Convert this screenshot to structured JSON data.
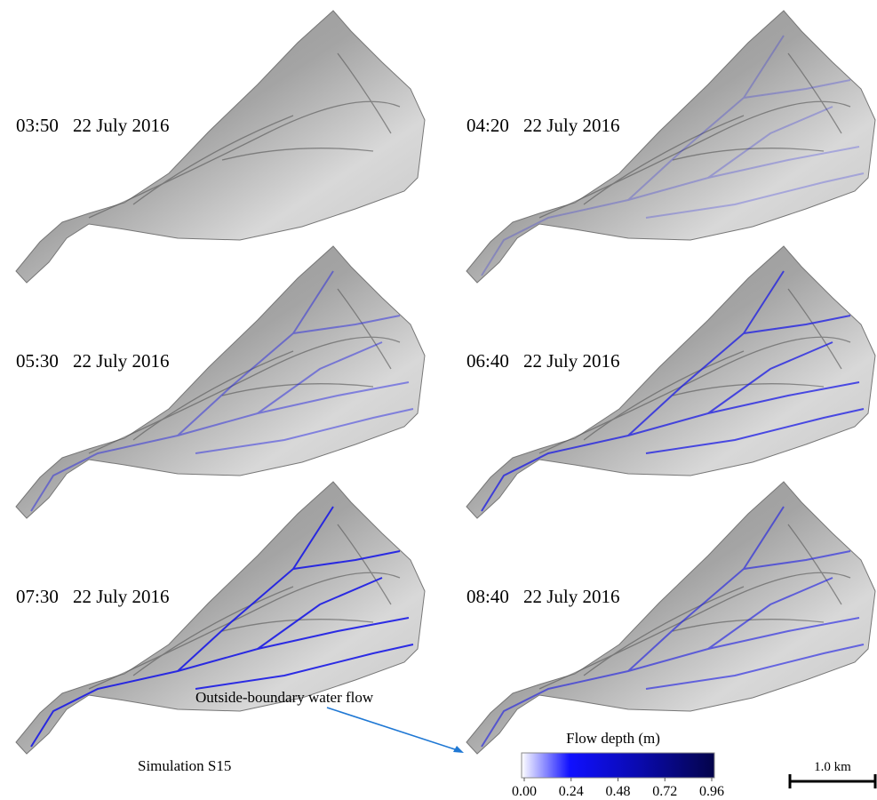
{
  "panels": [
    {
      "time": "03:50",
      "date": "22 July 2016"
    },
    {
      "time": "04:20",
      "date": "22 July 2016"
    },
    {
      "time": "05:30",
      "date": "22 July 2016"
    },
    {
      "time": "06:40",
      "date": "22 July 2016"
    },
    {
      "time": "07:30",
      "date": "22 July 2016"
    },
    {
      "time": "08:40",
      "date": "22 July 2016"
    }
  ],
  "annotation": "Outside-boundary water flow",
  "simulation": "Simulation S15",
  "colorbar": {
    "title": "Flow depth (m)",
    "min": 0,
    "max": 0.96,
    "ticks": [
      {
        "value": 0,
        "label": "0.00"
      },
      {
        "value": 0.24,
        "label": "0.24"
      },
      {
        "value": 0.48,
        "label": "0.48"
      },
      {
        "value": 0.72,
        "label": "0.72"
      },
      {
        "value": 0.96,
        "label": "0.96"
      }
    ]
  },
  "scale_bar": "1.0 km"
}
